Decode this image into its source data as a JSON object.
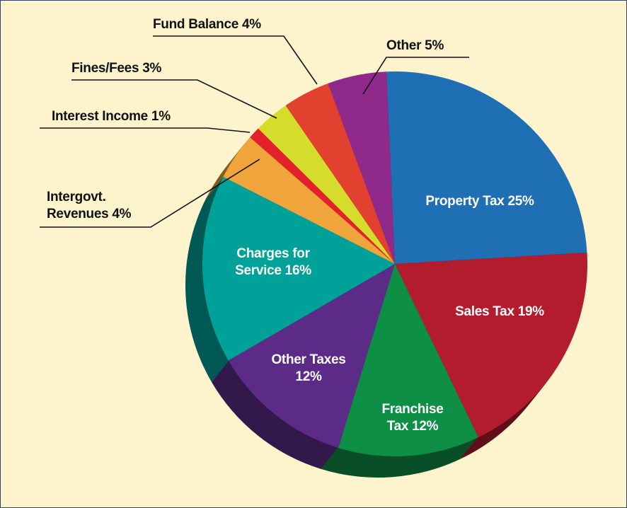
{
  "chart_data": {
    "type": "pie",
    "categories": [
      "Property Tax",
      "Sales Tax",
      "Franchise Tax",
      "Other Taxes",
      "Charges for Service",
      "Intergovt. Revenues",
      "Interest Income",
      "Fines/Fees",
      "Fund Balance",
      "Other"
    ],
    "values": [
      25,
      19,
      12,
      12,
      16,
      4,
      1,
      3,
      4,
      5
    ],
    "value_labels": [
      "25%",
      "19%",
      "12%",
      "12%",
      "16%",
      "4%",
      "1%",
      "3%",
      "4%",
      "5%"
    ],
    "colors": [
      "#1f6fb5",
      "#b21c2e",
      "#0e8f46",
      "#5c2b88",
      "#00a199",
      "#f0a53c",
      "#e2212b",
      "#d5dc2b",
      "#e2412f",
      "#8f2a8b"
    ]
  }
}
